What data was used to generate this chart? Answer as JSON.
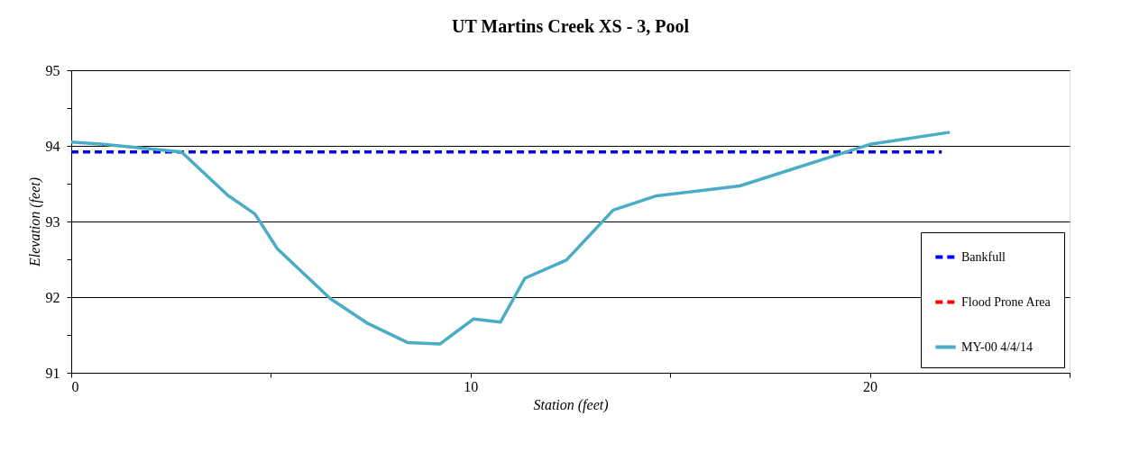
{
  "chart_data": {
    "type": "line",
    "title": "UT Martins Creek XS - 3, Pool",
    "xlabel": "Station (feet)",
    "ylabel": "Elevation (feet)",
    "xlim": [
      0,
      25
    ],
    "xticks": [
      0,
      {
        "value": 5,
        "label": null
      },
      10,
      {
        "value": 15,
        "label": null
      },
      20,
      {
        "value": 25,
        "label": null
      }
    ],
    "ylim": [
      91,
      95
    ],
    "yticks": [
      91,
      {
        "value": 91.5,
        "label": null
      },
      92,
      {
        "value": 92.5,
        "label": null
      },
      93,
      {
        "value": 93.5,
        "label": null
      },
      94,
      {
        "value": 94.5,
        "label": null
      },
      95
    ],
    "grid": "y",
    "legend": "bottom right",
    "series": [
      {
        "name": "Bankfull",
        "color": "#0000ff",
        "line_style": "dashed",
        "x": [
          0,
          21.8
        ],
        "values": [
          93.92,
          93.92
        ]
      },
      {
        "name": "Flood Prone Area",
        "color": "#ff0000",
        "line_style": "dashed"
      },
      {
        "name": "MY-00 4/4/14",
        "color": "#4bacc6",
        "line_style": "solid",
        "x": [
          0,
          0.8,
          2.76,
          3.91,
          4.6,
          5.16,
          6.49,
          7.4,
          8.42,
          9.23,
          10.07,
          10.75,
          11.36,
          12.4,
          13.57,
          14.66,
          16.74,
          20.0,
          22.0
        ],
        "values": [
          94.05,
          94.02,
          93.92,
          93.35,
          93.1,
          92.64,
          91.98,
          91.66,
          91.4,
          91.38,
          91.71,
          91.67,
          92.25,
          92.49,
          93.15,
          93.34,
          93.47,
          94.02,
          94.18
        ]
      }
    ]
  }
}
